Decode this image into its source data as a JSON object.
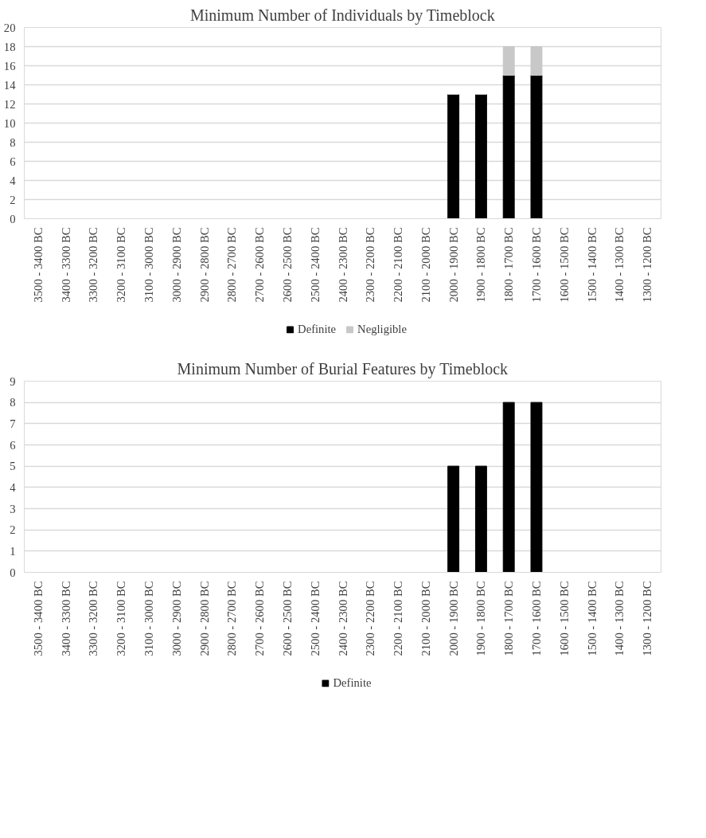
{
  "chart_data": [
    {
      "type": "bar",
      "title": "Minimum Number of Individuals by Timeblock",
      "categories": [
        "3500 - 3400 BC",
        "3400 - 3300 BC",
        "3300 - 3200 BC",
        "3200 - 3100 BC",
        "3100 - 3000 BC",
        "3000 - 2900 BC",
        "2900 - 2800 BC",
        "2800 - 2700 BC",
        "2700 - 2600 BC",
        "2600 - 2500 BC",
        "2500 - 2400 BC",
        "2400 - 2300 BC",
        "2300 - 2200 BC",
        "2200 - 2100 BC",
        "2100 - 2000 BC",
        "2000 - 1900 BC",
        "1900 - 1800 BC",
        "1800 - 1700 BC",
        "1700 - 1600 BC",
        "1600 - 1500 BC",
        "1500 - 1400 BC",
        "1400 - 1300 BC",
        "1300 - 1200 BC"
      ],
      "stacked": true,
      "series": [
        {
          "name": "Definite",
          "color": "#000000",
          "values": [
            0,
            0,
            0,
            0,
            0,
            0,
            0,
            0,
            0,
            0,
            0,
            0,
            0,
            0,
            0,
            13,
            13,
            15,
            15,
            0,
            0,
            0,
            0
          ]
        },
        {
          "name": "Negligible",
          "color": "#c8c8c8",
          "values": [
            0,
            0,
            0,
            0,
            0,
            0,
            0,
            0,
            0,
            0,
            0,
            0,
            0,
            0,
            0,
            0,
            0,
            3,
            3,
            0,
            0,
            0,
            0
          ]
        }
      ],
      "ylim": [
        0,
        20
      ],
      "yticks": [
        0,
        2,
        4,
        6,
        8,
        10,
        12,
        14,
        16,
        18,
        20
      ],
      "grid": "y",
      "legend": "bottom"
    },
    {
      "type": "bar",
      "title": "Minimum Number of Burial Features by Timeblock",
      "categories": [
        "3500 - 3400 BC",
        "3400 - 3300 BC",
        "3300 - 3200 BC",
        "3200 - 3100 BC",
        "3100 - 3000 BC",
        "3000 - 2900 BC",
        "2900 - 2800 BC",
        "2800 - 2700 BC",
        "2700 - 2600 BC",
        "2600 - 2500 BC",
        "2500 - 2400 BC",
        "2400 - 2300 BC",
        "2300 - 2200 BC",
        "2200 - 2100 BC",
        "2100 - 2000 BC",
        "2000 - 1900 BC",
        "1900 - 1800 BC",
        "1800 - 1700 BC",
        "1700 - 1600 BC",
        "1600 - 1500 BC",
        "1500 - 1400 BC",
        "1400 - 1300 BC",
        "1300 - 1200 BC"
      ],
      "series": [
        {
          "name": "Definite",
          "color": "#000000",
          "values": [
            0,
            0,
            0,
            0,
            0,
            0,
            0,
            0,
            0,
            0,
            0,
            0,
            0,
            0,
            0,
            5,
            5,
            8,
            8,
            0,
            0,
            0,
            0
          ]
        }
      ],
      "ylim": [
        0,
        9
      ],
      "yticks": [
        0,
        1,
        2,
        3,
        4,
        5,
        6,
        7,
        8,
        9
      ],
      "grid": "y",
      "legend": "bottom"
    }
  ]
}
